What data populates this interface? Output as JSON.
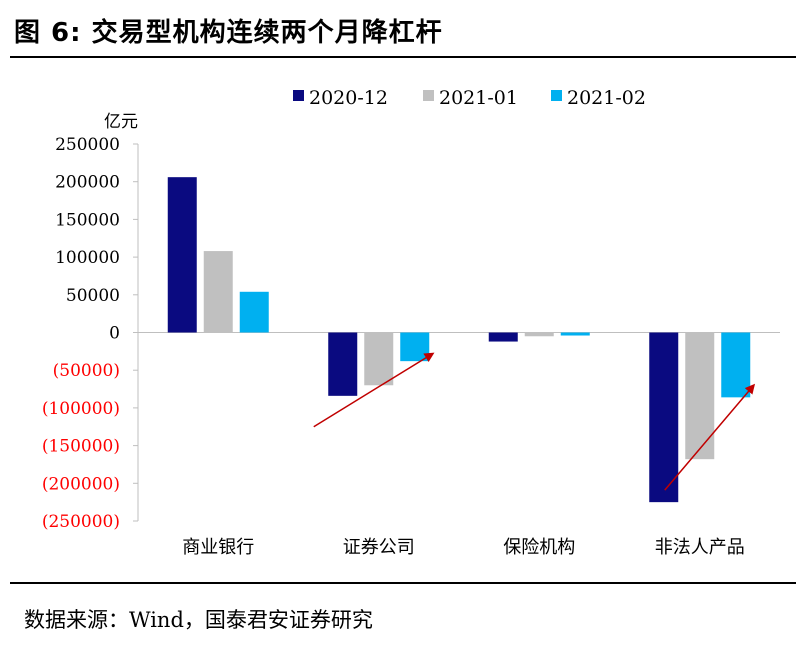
{
  "figure": {
    "title": "图 6:  交易型机构连续两个月降杠杆",
    "source": "数据来源：Wind，国泰君安证券研究"
  },
  "chart_data": {
    "type": "bar",
    "unit_label": "亿元",
    "categories": [
      "商业银行",
      "证券公司",
      "保险机构",
      "非法人产品"
    ],
    "series": [
      {
        "name": "2020-12",
        "color": "#0a0a80",
        "values": [
          206000,
          -84000,
          -12000,
          -225000
        ]
      },
      {
        "name": "2021-01",
        "color": "#c0c0c0",
        "values": [
          108000,
          -70000,
          -5000,
          -168000
        ]
      },
      {
        "name": "2021-02",
        "color": "#00b0f0",
        "values": [
          54000,
          -38000,
          -4000,
          -86000
        ]
      }
    ],
    "ylim": [
      -250000,
      250000
    ],
    "yticks": [
      250000,
      200000,
      150000,
      100000,
      50000,
      0,
      -50000,
      -100000,
      -150000,
      -200000,
      -250000
    ],
    "ytick_labels": [
      "250000",
      "200000",
      "150000",
      "100000",
      "50000",
      "0",
      "(50000)",
      "(100000)",
      "(150000)",
      "(200000)",
      "(250000)"
    ],
    "negative_label_color": "#ff0000",
    "arrow_color": "#c00000",
    "legend_position": "top",
    "annotations": [
      {
        "type": "arrow",
        "category": "证券公司",
        "direction": "up-right"
      },
      {
        "type": "arrow",
        "category": "非法人产品",
        "direction": "up-right"
      }
    ]
  }
}
